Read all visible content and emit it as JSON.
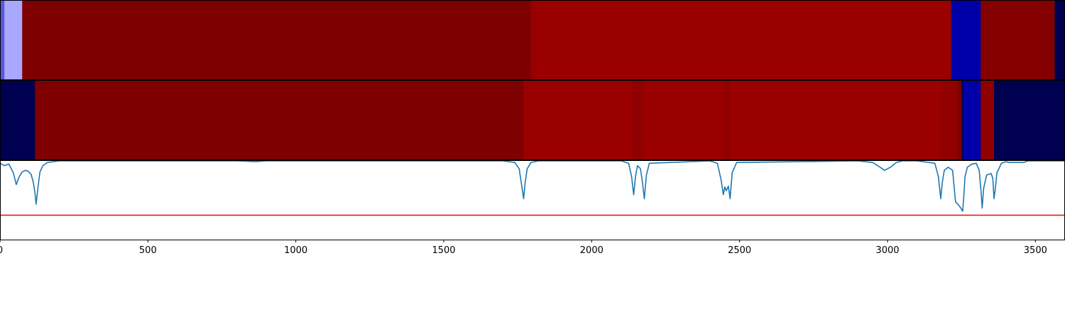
{
  "chart_data": {
    "type": "heatmap",
    "title": "",
    "xlabel": "",
    "ylabel": "",
    "xlim": [
      0,
      3600
    ],
    "grid": false,
    "xticks": [
      0,
      500,
      1000,
      1500,
      2000,
      2500,
      3000,
      3500
    ],
    "xtick_labels": [
      "0",
      "500",
      "1000",
      "1500",
      "2000",
      "2500",
      "3000",
      "3500"
    ],
    "bands": [
      {
        "segments": [
          {
            "start": 0,
            "end": 15,
            "color": "#5a5ad8"
          },
          {
            "start": 15,
            "end": 75,
            "color": "#a8a8ff"
          },
          {
            "start": 75,
            "end": 1795,
            "color": "#7f0000"
          },
          {
            "start": 1795,
            "end": 3215,
            "color": "#9b0000"
          },
          {
            "start": 3215,
            "end": 3315,
            "color": "#0000a8"
          },
          {
            "start": 3315,
            "end": 3565,
            "color": "#840000"
          },
          {
            "start": 3565,
            "end": 3600,
            "color": "#000050"
          }
        ]
      },
      {
        "segments": [
          {
            "start": 0,
            "end": 118,
            "color": "#000050"
          },
          {
            "start": 118,
            "end": 1770,
            "color": "#7f0000"
          },
          {
            "start": 1770,
            "end": 2138,
            "color": "#9b0000"
          },
          {
            "start": 2138,
            "end": 2175,
            "color": "#8f0000"
          },
          {
            "start": 2175,
            "end": 2445,
            "color": "#9b0000"
          },
          {
            "start": 2445,
            "end": 2465,
            "color": "#8f0000"
          },
          {
            "start": 2465,
            "end": 3180,
            "color": "#9b0000"
          },
          {
            "start": 3180,
            "end": 3235,
            "color": "#930000"
          },
          {
            "start": 3235,
            "end": 3250,
            "color": "#7f0000"
          },
          {
            "start": 3250,
            "end": 3255,
            "color": "#000050"
          },
          {
            "start": 3255,
            "end": 3315,
            "color": "#0000a8"
          },
          {
            "start": 3315,
            "end": 3360,
            "color": "#8f0000"
          },
          {
            "start": 3360,
            "end": 3600,
            "color": "#000050"
          }
        ]
      }
    ],
    "line_panel": {
      "ylim": [
        0,
        1
      ],
      "threshold": 0.31,
      "threshold_color": "#e31a1c",
      "line_color": "#1f77b4",
      "x": [
        0,
        15,
        30,
        45,
        55,
        65,
        75,
        85,
        95,
        105,
        112,
        118,
        122,
        128,
        135,
        145,
        160,
        200,
        800,
        840,
        860,
        880,
        900,
        1700,
        1740,
        1755,
        1763,
        1770,
        1775,
        1782,
        1795,
        1820,
        2100,
        2125,
        2135,
        2142,
        2148,
        2155,
        2165,
        2172,
        2178,
        2185,
        2195,
        2400,
        2425,
        2438,
        2445,
        2450,
        2455,
        2462,
        2468,
        2475,
        2490,
        2900,
        2950,
        2975,
        2990,
        3010,
        3030,
        3050,
        3100,
        3160,
        3172,
        3180,
        3185,
        3192,
        3205,
        3220,
        3230,
        3240,
        3248,
        3254,
        3258,
        3262,
        3270,
        3285,
        3300,
        3310,
        3316,
        3320,
        3325,
        3335,
        3350,
        3356,
        3360,
        3363,
        3370,
        3385,
        3400,
        3410,
        3460,
        3475,
        3600
      ],
      "y": [
        0.97,
        0.94,
        0.96,
        0.85,
        0.7,
        0.8,
        0.86,
        0.88,
        0.87,
        0.83,
        0.74,
        0.6,
        0.45,
        0.65,
        0.86,
        0.94,
        0.98,
        1.0,
        1.0,
        0.995,
        0.99,
        0.995,
        1.0,
        1.0,
        0.98,
        0.9,
        0.7,
        0.52,
        0.72,
        0.9,
        0.98,
        1.0,
        1.0,
        0.97,
        0.8,
        0.57,
        0.8,
        0.94,
        0.9,
        0.72,
        0.52,
        0.82,
        0.97,
        1.0,
        0.97,
        0.75,
        0.57,
        0.67,
        0.62,
        0.68,
        0.52,
        0.85,
        0.98,
        1.0,
        0.98,
        0.92,
        0.88,
        0.92,
        0.98,
        1.0,
        1.0,
        0.97,
        0.8,
        0.52,
        0.72,
        0.88,
        0.92,
        0.88,
        0.48,
        0.44,
        0.4,
        0.36,
        0.55,
        0.8,
        0.92,
        0.96,
        0.97,
        0.88,
        0.62,
        0.4,
        0.65,
        0.82,
        0.84,
        0.78,
        0.52,
        0.6,
        0.85,
        0.97,
        0.99,
        0.98,
        0.98,
        1.0,
        1.0
      ]
    }
  }
}
